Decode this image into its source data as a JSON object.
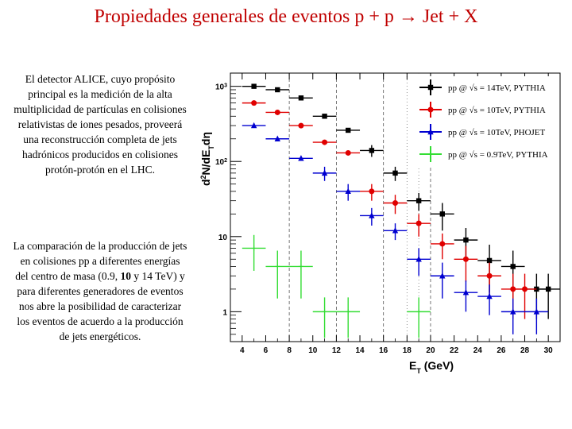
{
  "slide": {
    "title": "Propiedades generales de eventos p + p → Jet + X",
    "paragraph1": "El detector ALICE, cuyo propósito principal es la medición de la alta multiplicidad de partículas en colisiones relativistas de iones pesados, proveerá una reconstrucción completa de jets hadrónicos producidos en colisiones protón-protón en el LHC.",
    "paragraph2_before": "La comparación de la producción de jets en colisiones pp a diferentes energías del centro de masa (0.9, ",
    "paragraph2_bold": "10",
    "paragraph2_after": " y 14 TeV) y para diferentes generadores de eventos nos abre la posibilidad de caracterizar los eventos de acuerdo a la producción de jets energéticos."
  },
  "chart_data": {
    "type": "scatter",
    "x_scale": "linear",
    "y_scale": "log",
    "xlim": [
      3,
      31
    ],
    "ylim": [
      0.4,
      1500
    ],
    "xlabel": "E_T (GeV)",
    "xlabel_main": "E",
    "xlabel_sub": "T",
    "xlabel_unit": " (GeV)",
    "ylabel": "d²N/dE_T dη",
    "ylabel_parts": {
      "d": "d",
      "sup": "2",
      "mid": "N/dE",
      "sub": "T",
      "end": "dη"
    },
    "x_ticks": [
      4,
      6,
      8,
      10,
      12,
      14,
      16,
      18,
      20,
      22,
      24,
      26,
      28,
      30
    ],
    "y_ticks": [
      {
        "value": 1,
        "base": "1",
        "exp": ""
      },
      {
        "value": 10,
        "base": "10",
        "exp": ""
      },
      {
        "value": 100,
        "base": "10",
        "exp": "2"
      },
      {
        "value": 1000,
        "base": "10",
        "exp": "3"
      }
    ],
    "dashed_verticals": [
      8,
      12,
      16,
      20
    ],
    "dotted_verticals": [
      18,
      19
    ],
    "legend_position": "top-right",
    "series": [
      {
        "name": "pp @√s = 14TeV, PYTHIA",
        "legend_text": "pp @ √s = 14TeV, PYTHIA",
        "color": "#000000",
        "marker": "square",
        "points": [
          {
            "x": 5,
            "y": 1000,
            "ex": 1,
            "ey": 0
          },
          {
            "x": 7,
            "y": 900,
            "ex": 1,
            "ey": 0
          },
          {
            "x": 9,
            "y": 700,
            "ex": 1,
            "ey": 0
          },
          {
            "x": 11,
            "y": 400,
            "ex": 1,
            "ey": 0
          },
          {
            "x": 13,
            "y": 260,
            "ex": 1,
            "ey": 0
          },
          {
            "x": 15,
            "y": 140,
            "ex": 1,
            "ey": 25
          },
          {
            "x": 17,
            "y": 70,
            "ex": 1,
            "ey": 15
          },
          {
            "x": 19,
            "y": 30,
            "ex": 1,
            "ey": 8
          },
          {
            "x": 21,
            "y": 20,
            "ex": 1,
            "ey": 8
          },
          {
            "x": 23,
            "y": 9,
            "ex": 1,
            "ey": 4
          },
          {
            "x": 25,
            "y": 4.8,
            "ex": 1,
            "ey": 3
          },
          {
            "x": 27,
            "y": 4,
            "ex": 1,
            "ey": 2.5
          },
          {
            "x": 29,
            "y": 2,
            "ex": 1,
            "ey": 1.2
          },
          {
            "x": 30,
            "y": 2,
            "ex": 1,
            "ey": 1.2
          }
        ]
      },
      {
        "name": "pp @√s = 10TeV, PYTHIA",
        "legend_text": "pp @ √s = 10TeV, PYTHIA",
        "color": "#e00000",
        "marker": "circle",
        "points": [
          {
            "x": 5,
            "y": 600,
            "ex": 1,
            "ey": 0
          },
          {
            "x": 7,
            "y": 450,
            "ex": 1,
            "ey": 0
          },
          {
            "x": 9,
            "y": 300,
            "ex": 1,
            "ey": 0
          },
          {
            "x": 11,
            "y": 180,
            "ex": 1,
            "ey": 0
          },
          {
            "x": 13,
            "y": 130,
            "ex": 1,
            "ey": 0
          },
          {
            "x": 15,
            "y": 40,
            "ex": 1,
            "ey": 10
          },
          {
            "x": 17,
            "y": 28,
            "ex": 1,
            "ey": 8
          },
          {
            "x": 19,
            "y": 15,
            "ex": 1,
            "ey": 5
          },
          {
            "x": 21,
            "y": 8,
            "ex": 1,
            "ey": 3
          },
          {
            "x": 23,
            "y": 5,
            "ex": 1,
            "ey": 2.5
          },
          {
            "x": 25,
            "y": 3,
            "ex": 1,
            "ey": 1.5
          },
          {
            "x": 27,
            "y": 2,
            "ex": 1,
            "ey": 1.2
          },
          {
            "x": 28,
            "y": 2,
            "ex": 1,
            "ey": 1.2
          }
        ]
      },
      {
        "name": "pp @√s = 10TeV, PHOJET",
        "legend_text": "pp @ √s = 10TeV, PHOJET",
        "color": "#0000d0",
        "marker": "triangle",
        "points": [
          {
            "x": 5,
            "y": 300,
            "ex": 1,
            "ey": 0
          },
          {
            "x": 7,
            "y": 200,
            "ex": 1,
            "ey": 0
          },
          {
            "x": 9,
            "y": 110,
            "ex": 1,
            "ey": 0
          },
          {
            "x": 11,
            "y": 70,
            "ex": 1,
            "ey": 15
          },
          {
            "x": 13,
            "y": 40,
            "ex": 1,
            "ey": 10
          },
          {
            "x": 15,
            "y": 19,
            "ex": 1,
            "ey": 5
          },
          {
            "x": 17,
            "y": 12,
            "ex": 1,
            "ey": 3
          },
          {
            "x": 19,
            "y": 5,
            "ex": 1,
            "ey": 2
          },
          {
            "x": 21,
            "y": 3,
            "ex": 1,
            "ey": 1.5
          },
          {
            "x": 23,
            "y": 1.8,
            "ex": 1,
            "ey": 0.8
          },
          {
            "x": 25,
            "y": 1.6,
            "ex": 1,
            "ey": 0.7
          },
          {
            "x": 27,
            "y": 1,
            "ex": 1,
            "ey": 0.5
          },
          {
            "x": 29,
            "y": 1,
            "ex": 1,
            "ey": 0.5
          }
        ]
      },
      {
        "name": "pp @√s = 0.9TeV, PYTHIA",
        "legend_text": "pp @ √s = 0.9TeV, PYTHIA",
        "color": "#33dd33",
        "marker": "cross",
        "points": [
          {
            "x": 5,
            "y": 7,
            "ex": 1,
            "ey": 3.5
          },
          {
            "x": 7,
            "y": 4,
            "ex": 1,
            "ey": 2.5
          },
          {
            "x": 9,
            "y": 4,
            "ex": 1,
            "ey": 2.5
          },
          {
            "x": 11,
            "y": 1,
            "ex": 1,
            "ey": 0.55
          },
          {
            "x": 13,
            "y": 1,
            "ex": 1,
            "ey": 0.55
          },
          {
            "x": 19,
            "y": 1,
            "ex": 1,
            "ey": 0.55
          }
        ]
      }
    ]
  }
}
